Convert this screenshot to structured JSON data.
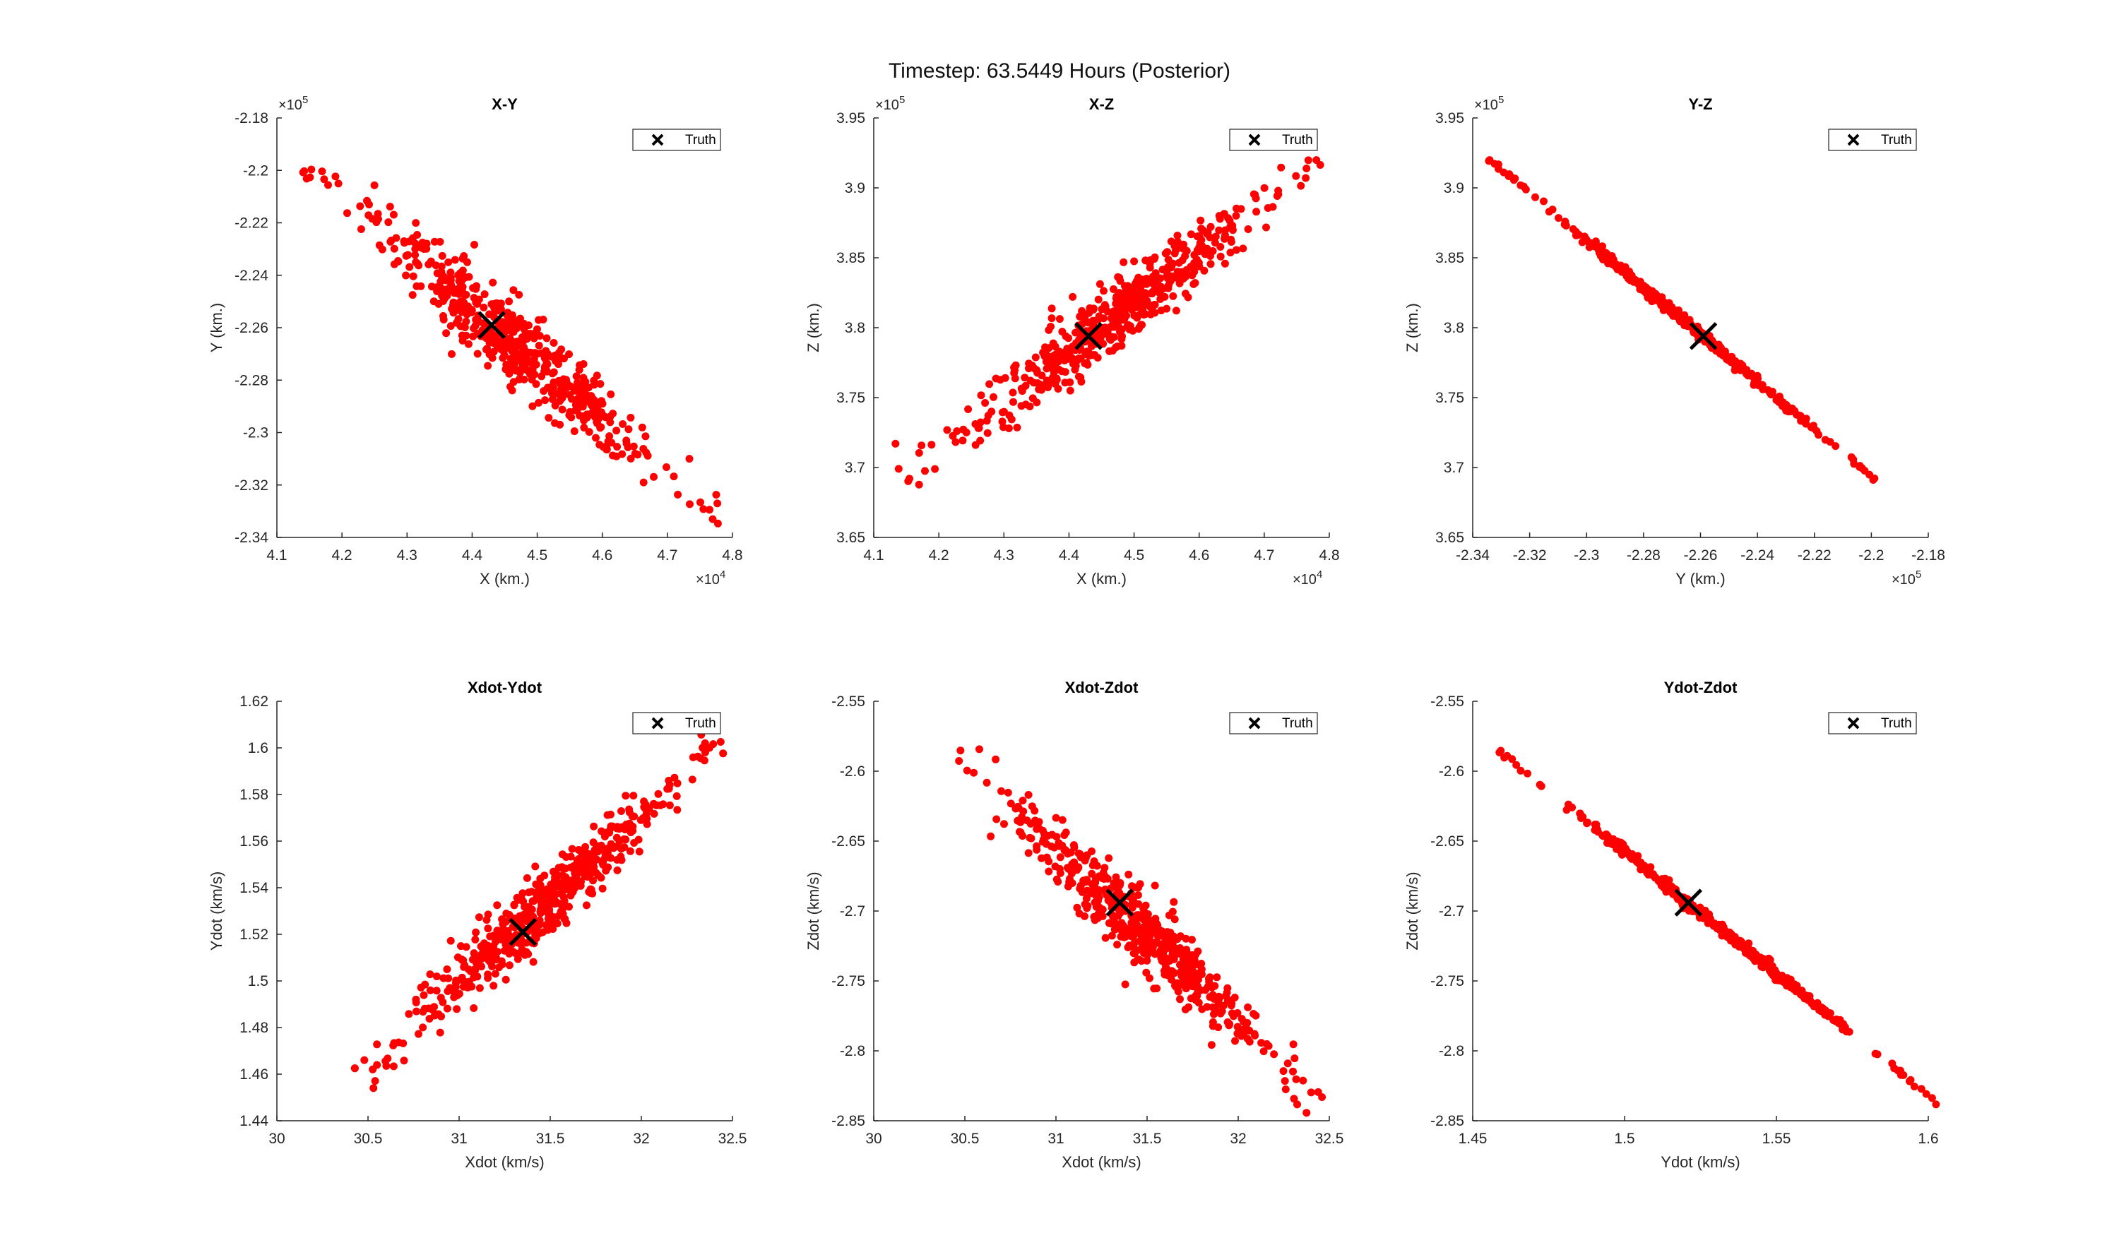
{
  "figure": {
    "title": "Timestep: 63.5449 Hours (Posterior)"
  },
  "style": {
    "point_color": "#ff0000",
    "truth_color": "#000000",
    "axis_color": "#262626"
  },
  "legend": {
    "label": "Truth",
    "marker": "x-icon",
    "placement": "top-right"
  },
  "chart_data": [
    {
      "type": "scatter",
      "title": "X-Y",
      "xlabel": "X (km.)",
      "ylabel": "Y (km.)",
      "xlim": [
        41000,
        48000
      ],
      "ylim": [
        -234000,
        -218000
      ],
      "xticks": [
        41000,
        42000,
        43000,
        44000,
        45000,
        46000,
        47000,
        48000
      ],
      "xtick_labels": [
        "4.1",
        "4.2",
        "4.3",
        "4.4",
        "4.5",
        "4.6",
        "4.7",
        "4.8"
      ],
      "x_exponent": "4",
      "yticks": [
        -234000,
        -232000,
        -230000,
        -228000,
        -226000,
        -224000,
        -222000,
        -220000,
        -218000
      ],
      "ytick_labels": [
        "-2.34",
        "-2.32",
        "-2.3",
        "-2.28",
        "-2.26",
        "-2.24",
        "-2.22",
        "-2.2",
        "-2.18"
      ],
      "y_exponent": "5",
      "grid": false,
      "cloud": {
        "start": [
          41500,
          -219800
        ],
        "end": [
          47800,
          -233400
        ],
        "spread": 0.028,
        "n": 520
      },
      "truth": [
        44300,
        -225900
      ]
    },
    {
      "type": "scatter",
      "title": "X-Z",
      "xlabel": "X (km.)",
      "ylabel": "Z (km.)",
      "xlim": [
        41000,
        48000
      ],
      "ylim": [
        365000,
        395000
      ],
      "xticks": [
        41000,
        42000,
        43000,
        44000,
        45000,
        46000,
        47000,
        48000
      ],
      "xtick_labels": [
        "4.1",
        "4.2",
        "4.3",
        "4.4",
        "4.5",
        "4.6",
        "4.7",
        "4.8"
      ],
      "x_exponent": "4",
      "yticks": [
        365000,
        370000,
        375000,
        380000,
        385000,
        390000,
        395000
      ],
      "ytick_labels": [
        "3.65",
        "3.7",
        "3.75",
        "3.8",
        "3.85",
        "3.9",
        "3.95"
      ],
      "y_exponent": "5",
      "grid": false,
      "cloud": {
        "start": [
          41500,
          369200
        ],
        "end": [
          47800,
          392000
        ],
        "spread": 0.028,
        "n": 520
      },
      "truth": [
        44300,
        379400
      ]
    },
    {
      "type": "scatter",
      "title": "Y-Z",
      "xlabel": "Y (km.)",
      "ylabel": "Z (km.)",
      "xlim": [
        -234000,
        -218000
      ],
      "ylim": [
        365000,
        395000
      ],
      "xticks": [
        -234000,
        -232000,
        -230000,
        -228000,
        -226000,
        -224000,
        -222000,
        -220000,
        -218000
      ],
      "xtick_labels": [
        "-2.34",
        "-2.32",
        "-2.3",
        "-2.28",
        "-2.26",
        "-2.24",
        "-2.22",
        "-2.2",
        "-2.18"
      ],
      "x_exponent": "5",
      "yticks": [
        365000,
        370000,
        375000,
        380000,
        385000,
        390000,
        395000
      ],
      "ytick_labels": [
        "3.65",
        "3.7",
        "3.75",
        "3.8",
        "3.85",
        "3.9",
        "3.95"
      ],
      "y_exponent": "5",
      "grid": false,
      "cloud": {
        "start": [
          -233400,
          392000
        ],
        "end": [
          -219900,
          369200
        ],
        "spread": 0.004,
        "n": 420
      },
      "truth": [
        -225900,
        379400
      ]
    },
    {
      "type": "scatter",
      "title": "Xdot-Ydot",
      "xlabel": "Xdot (km/s)",
      "ylabel": "Ydot (km/s)",
      "xlim": [
        30,
        32.5
      ],
      "ylim": [
        1.44,
        1.62
      ],
      "xticks": [
        30,
        30.5,
        31,
        31.5,
        32,
        32.5
      ],
      "xtick_labels": [
        "30",
        "30.5",
        "31",
        "31.5",
        "32",
        "32.5"
      ],
      "yticks": [
        1.44,
        1.46,
        1.48,
        1.5,
        1.52,
        1.54,
        1.56,
        1.58,
        1.6,
        1.62
      ],
      "ytick_labels": [
        "1.44",
        "1.46",
        "1.48",
        "1.5",
        "1.52",
        "1.54",
        "1.56",
        "1.58",
        "1.6",
        "1.62"
      ],
      "grid": false,
      "cloud": {
        "start": [
          30.47,
          1.459
        ],
        "end": [
          32.43,
          1.603
        ],
        "spread": 0.028,
        "n": 520
      },
      "truth": [
        31.35,
        1.521
      ]
    },
    {
      "type": "scatter",
      "title": "Xdot-Zdot",
      "xlabel": "Xdot (km/s)",
      "ylabel": "Zdot (km/s)",
      "xlim": [
        30,
        32.5
      ],
      "ylim": [
        -2.85,
        -2.55
      ],
      "xticks": [
        30,
        30.5,
        31,
        31.5,
        32,
        32.5
      ],
      "xtick_labels": [
        "30",
        "30.5",
        "31",
        "31.5",
        "32",
        "32.5"
      ],
      "yticks": [
        -2.85,
        -2.8,
        -2.75,
        -2.7,
        -2.65,
        -2.6,
        -2.55
      ],
      "ytick_labels": [
        "-2.85",
        "-2.8",
        "-2.75",
        "-2.7",
        "-2.65",
        "-2.6",
        "-2.55"
      ],
      "grid": false,
      "cloud": {
        "start": [
          30.47,
          -2.586
        ],
        "end": [
          32.43,
          -2.837
        ],
        "spread": 0.028,
        "n": 520
      },
      "truth": [
        31.35,
        -2.694
      ]
    },
    {
      "type": "scatter",
      "title": "Ydot-Zdot",
      "xlabel": "Ydot (km/s)",
      "ylabel": "Zdot (km/s)",
      "xlim": [
        1.45,
        1.6
      ],
      "ylim": [
        -2.85,
        -2.55
      ],
      "xticks": [
        1.45,
        1.5,
        1.55,
        1.6
      ],
      "xtick_labels": [
        "1.45",
        "1.5",
        "1.55",
        "1.6"
      ],
      "yticks": [
        -2.85,
        -2.8,
        -2.75,
        -2.7,
        -2.65,
        -2.6,
        -2.55
      ],
      "ytick_labels": [
        "-2.85",
        "-2.8",
        "-2.75",
        "-2.7",
        "-2.65",
        "-2.6",
        "-2.55"
      ],
      "grid": false,
      "cloud": {
        "start": [
          1.459,
          -2.586
        ],
        "end": [
          1.603,
          -2.837
        ],
        "spread": 0.004,
        "n": 420
      },
      "truth": [
        1.521,
        -2.694
      ]
    }
  ]
}
